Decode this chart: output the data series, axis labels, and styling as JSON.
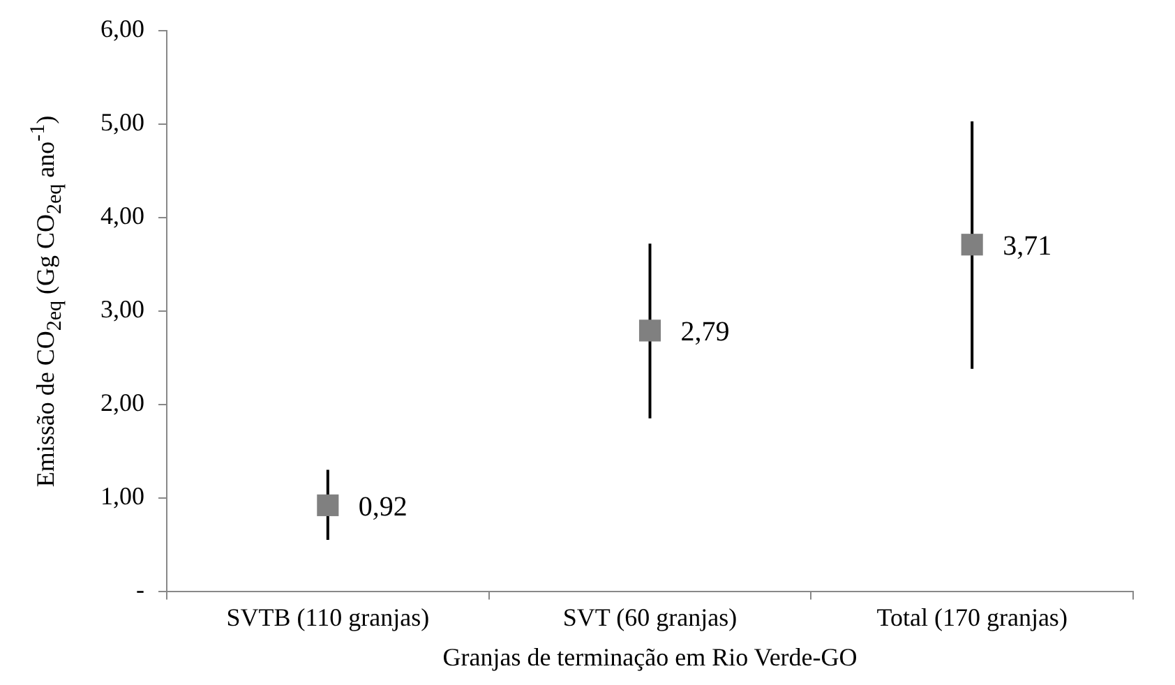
{
  "chart_data": {
    "type": "scatter",
    "xlabel": "Granjas de terminação em Rio Verde-GO",
    "ylabel": "Emissão de CO$_{2eq}$ (Gg CO$_{2eq}$ ano$^{-1}$)",
    "categories": [
      "SVTB (110 granjas)",
      "SVT (60 granjas)",
      "Total (170 granjas)"
    ],
    "series": [
      {
        "color": "#808080",
        "values": [
          0.92,
          2.79,
          3.71
        ],
        "errors": [
          [
            0.55,
            1.3
          ],
          [
            1.85,
            3.72
          ],
          [
            2.38,
            5.03
          ]
        ],
        "value_labels": [
          "0,92",
          "2,79",
          "3,71"
        ]
      }
    ],
    "ylim": [
      0,
      6
    ],
    "yticks": [
      {
        "value": 0,
        "label": "-"
      },
      {
        "value": 1,
        "label": "1,00"
      },
      {
        "value": 2,
        "label": "2,00"
      },
      {
        "value": 3,
        "label": "3,00"
      },
      {
        "value": 4,
        "label": "4,00"
      },
      {
        "value": 5,
        "label": "5,00"
      },
      {
        "value": 6,
        "label": "6,00"
      }
    ],
    "grid": false,
    "legend": false,
    "marker": "square"
  }
}
